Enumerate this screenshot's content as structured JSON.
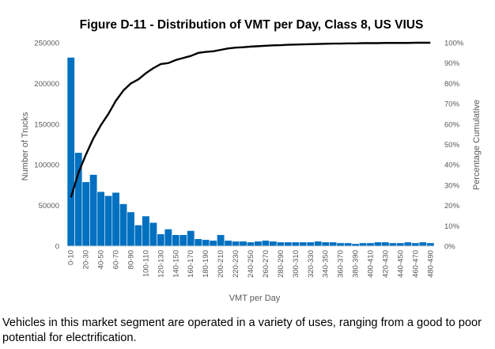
{
  "chart_data": {
    "type": "bar",
    "title": "Figure D-11 - Distribution of VMT per Day, Class 8, US VIUS",
    "xlabel": "VMT per Day",
    "ylabel": "Number of Trucks",
    "y2label": "Percentage Cumulative",
    "ylim": [
      0,
      250000
    ],
    "y2lim": [
      0,
      1
    ],
    "yticks": [
      "0",
      "50000",
      "100000",
      "150000",
      "200000",
      "250000"
    ],
    "y2ticks": [
      "0%",
      "10%",
      "20%",
      "30%",
      "40%",
      "50%",
      "60%",
      "70%",
      "80%",
      "90%",
      "100%"
    ],
    "grid": false,
    "legend": "none",
    "bar_color": "#0070c0",
    "line_color": "#000000",
    "categories": [
      "0-10",
      "10-20",
      "20-30",
      "30-40",
      "40-50",
      "50-60",
      "60-70",
      "70-80",
      "80-90",
      "90-100",
      "100-110",
      "110-120",
      "120-130",
      "130-140",
      "140-150",
      "150-160",
      "160-170",
      "170-180",
      "180-190",
      "190-200",
      "200-210",
      "210-220",
      "220-230",
      "230-240",
      "240-250",
      "250-260",
      "260-270",
      "270-280",
      "280-290",
      "290-300",
      "300-310",
      "310-320",
      "320-330",
      "330-340",
      "340-350",
      "350-360",
      "360-370",
      "370-380",
      "380-390",
      "390-400",
      "400-410",
      "410-420",
      "420-430",
      "430-440",
      "440-450",
      "450-460",
      "460-470",
      "470-480",
      "480-490"
    ],
    "x_tick_labels": [
      "0-10",
      "20-30",
      "40-50",
      "60-70",
      "80-90",
      "100-110",
      "120-130",
      "140-150",
      "160-170",
      "180-190",
      "200-210",
      "220-230",
      "240-250",
      "260-270",
      "280-290",
      "300-310",
      "320-330",
      "340-350",
      "360-370",
      "380-390",
      "400-410",
      "420-430",
      "440-450",
      "460-470",
      "480-490"
    ],
    "series": [
      {
        "kind": "bar",
        "values": [
          232000,
          115000,
          79000,
          88000,
          67000,
          62000,
          66000,
          52000,
          42000,
          26000,
          37000,
          29000,
          15000,
          21000,
          14000,
          14000,
          19000,
          9000,
          8000,
          7000,
          14000,
          7000,
          6000,
          6000,
          5000,
          6000,
          7000,
          6000,
          5000,
          5000,
          5000,
          5000,
          5000,
          6000,
          5000,
          5000,
          4000,
          4000,
          3000,
          4000,
          4000,
          5000,
          5000,
          4000,
          4000,
          5000,
          4000,
          5000,
          4000
        ]
      },
      {
        "kind": "line",
        "axis": "secondary",
        "values": [
          0.24,
          0.36,
          0.45,
          0.53,
          0.595,
          0.65,
          0.715,
          0.765,
          0.8,
          0.82,
          0.85,
          0.875,
          0.895,
          0.9,
          0.915,
          0.925,
          0.935,
          0.95,
          0.955,
          0.958,
          0.965,
          0.972,
          0.976,
          0.978,
          0.981,
          0.983,
          0.985,
          0.987,
          0.988,
          0.99,
          0.991,
          0.992,
          0.993,
          0.994,
          0.995,
          0.996,
          0.996,
          0.997,
          0.997,
          0.998,
          0.998,
          0.998,
          0.999,
          0.999,
          0.999,
          0.999,
          1.0,
          1.0,
          1.0
        ]
      }
    ]
  },
  "caption": "Vehicles in this market segment are operated in a variety of uses, ranging from a good to poor potential for electrification."
}
